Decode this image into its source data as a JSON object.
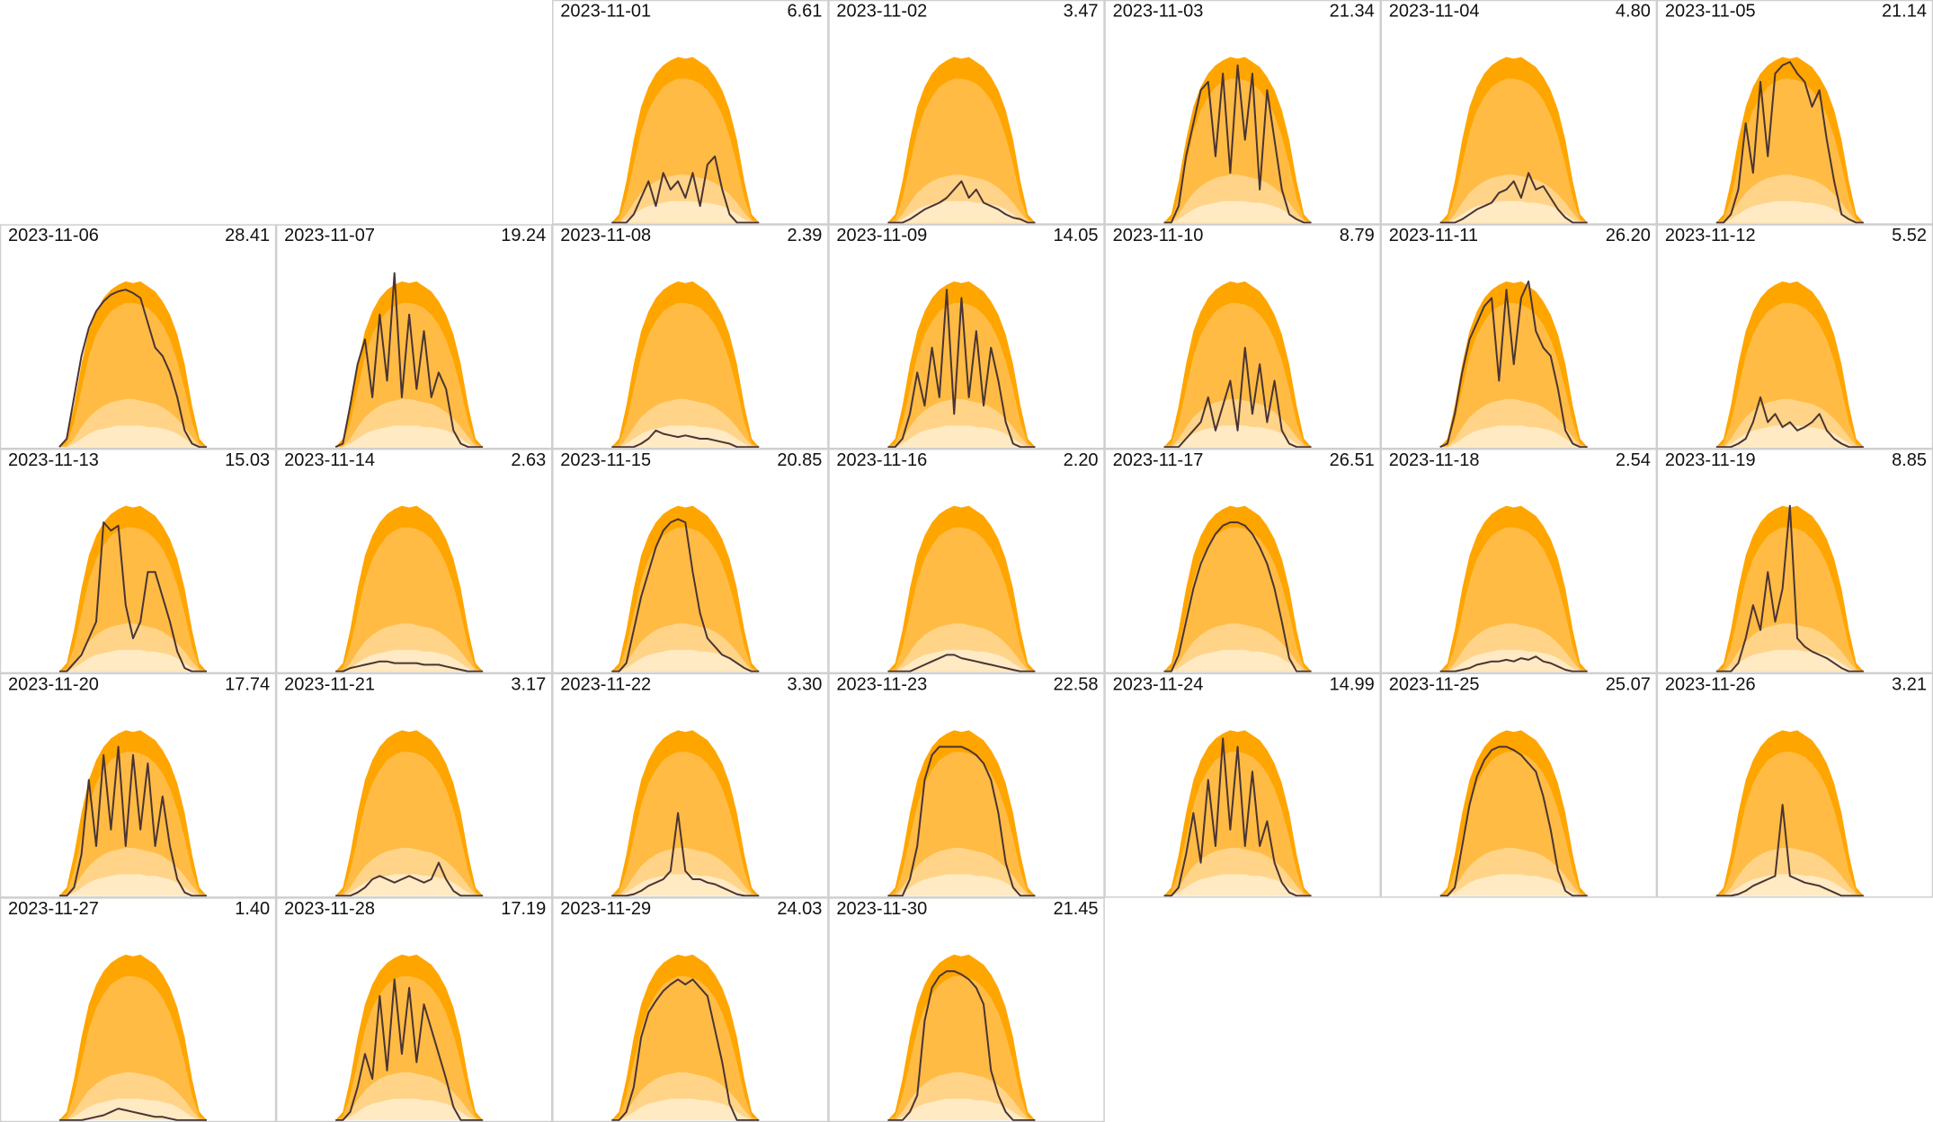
{
  "bands": [
    {
      "color": "#ffa500",
      "values": [
        0,
        0.05,
        0.25,
        0.5,
        0.7,
        0.82,
        0.9,
        0.95,
        0.98,
        1.0,
        0.99,
        1.0,
        0.97,
        0.94,
        0.88,
        0.8,
        0.68,
        0.5,
        0.25,
        0.05,
        0
      ]
    },
    {
      "color": "#ffbb44",
      "values": [
        0,
        0.02,
        0.15,
        0.35,
        0.55,
        0.68,
        0.76,
        0.82,
        0.85,
        0.87,
        0.87,
        0.86,
        0.84,
        0.8,
        0.74,
        0.65,
        0.52,
        0.35,
        0.15,
        0.02,
        0
      ]
    },
    {
      "color": "#ffd488",
      "values": [
        0,
        0,
        0.05,
        0.12,
        0.18,
        0.22,
        0.25,
        0.27,
        0.28,
        0.29,
        0.29,
        0.28,
        0.27,
        0.26,
        0.24,
        0.21,
        0.17,
        0.12,
        0.06,
        0.01,
        0
      ]
    },
    {
      "color": "#ffeac4",
      "values": [
        0,
        0,
        0.02,
        0.05,
        0.08,
        0.1,
        0.11,
        0.12,
        0.13,
        0.13,
        0.13,
        0.13,
        0.12,
        0.12,
        0.11,
        0.1,
        0.08,
        0.05,
        0.02,
        0,
        0
      ]
    }
  ],
  "line_color": "#4a3434",
  "ylim": [
    0,
    1.1
  ],
  "chart_data": [
    {
      "type": "area-line",
      "title": "2023-11-01",
      "total": "6.61",
      "values": [
        0,
        0,
        0,
        0.05,
        0.15,
        0.25,
        0.1,
        0.3,
        0.2,
        0.25,
        0.15,
        0.3,
        0.1,
        0.35,
        0.4,
        0.2,
        0.05,
        0,
        0,
        0,
        0
      ]
    },
    {
      "type": "area-line",
      "title": "2023-11-02",
      "total": "3.47",
      "values": [
        0,
        0,
        0,
        0.02,
        0.05,
        0.08,
        0.1,
        0.12,
        0.15,
        0.2,
        0.25,
        0.15,
        0.2,
        0.12,
        0.1,
        0.08,
        0.05,
        0.03,
        0.02,
        0,
        0
      ]
    },
    {
      "type": "area-line",
      "title": "2023-11-03",
      "total": "21.34",
      "values": [
        0,
        0,
        0.1,
        0.4,
        0.6,
        0.8,
        0.85,
        0.4,
        0.9,
        0.3,
        0.95,
        0.5,
        0.9,
        0.2,
        0.8,
        0.5,
        0.2,
        0.05,
        0.02,
        0,
        0
      ]
    },
    {
      "type": "area-line",
      "title": "2023-11-04",
      "total": "4.80",
      "values": [
        0,
        0,
        0,
        0.02,
        0.05,
        0.08,
        0.1,
        0.12,
        0.18,
        0.2,
        0.25,
        0.15,
        0.3,
        0.2,
        0.22,
        0.15,
        0.08,
        0.03,
        0,
        0,
        0
      ]
    },
    {
      "type": "area-line",
      "title": "2023-11-05",
      "total": "21.14",
      "values": [
        0,
        0,
        0.05,
        0.2,
        0.6,
        0.3,
        0.85,
        0.4,
        0.9,
        0.95,
        0.97,
        0.9,
        0.85,
        0.7,
        0.8,
        0.5,
        0.25,
        0.05,
        0.02,
        0,
        0
      ]
    },
    {
      "type": "area-line",
      "title": "2023-11-06",
      "total": "28.41",
      "values": [
        0,
        0.05,
        0.3,
        0.55,
        0.72,
        0.82,
        0.88,
        0.92,
        0.94,
        0.95,
        0.93,
        0.9,
        0.75,
        0.6,
        0.55,
        0.45,
        0.3,
        0.1,
        0.02,
        0,
        0
      ]
    },
    {
      "type": "area-line",
      "title": "2023-11-07",
      "total": "19.24",
      "values": [
        0,
        0.02,
        0.25,
        0.5,
        0.65,
        0.3,
        0.8,
        0.4,
        1.05,
        0.3,
        0.8,
        0.35,
        0.7,
        0.3,
        0.45,
        0.35,
        0.1,
        0.02,
        0,
        0,
        0
      ]
    },
    {
      "type": "area-line",
      "title": "2023-11-08",
      "total": "2.39",
      "values": [
        0,
        0,
        0,
        0,
        0.02,
        0.05,
        0.1,
        0.08,
        0.07,
        0.06,
        0.07,
        0.06,
        0.05,
        0.05,
        0.04,
        0.03,
        0.02,
        0,
        0,
        0,
        0
      ]
    },
    {
      "type": "area-line",
      "title": "2023-11-09",
      "total": "14.05",
      "values": [
        0,
        0,
        0.05,
        0.2,
        0.45,
        0.25,
        0.6,
        0.3,
        0.95,
        0.2,
        0.9,
        0.3,
        0.7,
        0.25,
        0.6,
        0.4,
        0.15,
        0.02,
        0,
        0,
        0
      ]
    },
    {
      "type": "area-line",
      "title": "2023-11-10",
      "total": "8.79",
      "values": [
        0,
        0,
        0,
        0.05,
        0.1,
        0.15,
        0.3,
        0.1,
        0.25,
        0.4,
        0.1,
        0.6,
        0.2,
        0.5,
        0.15,
        0.4,
        0.1,
        0.02,
        0,
        0,
        0
      ]
    },
    {
      "type": "area-line",
      "title": "2023-11-11",
      "total": "26.20",
      "values": [
        0,
        0.02,
        0.2,
        0.45,
        0.65,
        0.75,
        0.85,
        0.9,
        0.4,
        0.95,
        0.5,
        0.9,
        1.0,
        0.7,
        0.6,
        0.55,
        0.35,
        0.1,
        0.02,
        0,
        0
      ]
    },
    {
      "type": "area-line",
      "title": "2023-11-12",
      "total": "5.52",
      "values": [
        0,
        0,
        0,
        0.02,
        0.05,
        0.15,
        0.3,
        0.15,
        0.2,
        0.12,
        0.15,
        0.1,
        0.12,
        0.15,
        0.2,
        0.1,
        0.05,
        0.02,
        0,
        0,
        0
      ]
    },
    {
      "type": "area-line",
      "title": "2023-11-13",
      "total": "15.03",
      "values": [
        0,
        0,
        0.05,
        0.1,
        0.2,
        0.3,
        0.9,
        0.85,
        0.88,
        0.4,
        0.2,
        0.3,
        0.6,
        0.6,
        0.45,
        0.3,
        0.12,
        0.02,
        0,
        0,
        0
      ]
    },
    {
      "type": "area-line",
      "title": "2023-11-14",
      "total": "2.63",
      "values": [
        0,
        0,
        0.02,
        0.03,
        0.04,
        0.05,
        0.06,
        0.06,
        0.05,
        0.05,
        0.05,
        0.05,
        0.04,
        0.04,
        0.04,
        0.03,
        0.02,
        0.01,
        0,
        0,
        0
      ]
    },
    {
      "type": "area-line",
      "title": "2023-11-15",
      "total": "20.85",
      "values": [
        0,
        0,
        0.05,
        0.25,
        0.45,
        0.6,
        0.75,
        0.85,
        0.9,
        0.92,
        0.9,
        0.6,
        0.35,
        0.2,
        0.15,
        0.1,
        0.08,
        0.05,
        0.02,
        0,
        0
      ]
    },
    {
      "type": "area-line",
      "title": "2023-11-16",
      "total": "2.20",
      "values": [
        0,
        0,
        0,
        0,
        0.02,
        0.04,
        0.06,
        0.08,
        0.1,
        0.1,
        0.08,
        0.07,
        0.06,
        0.05,
        0.04,
        0.03,
        0.02,
        0.01,
        0,
        0,
        0
      ]
    },
    {
      "type": "area-line",
      "title": "2023-11-17",
      "total": "26.51",
      "values": [
        0,
        0,
        0.1,
        0.3,
        0.5,
        0.65,
        0.75,
        0.83,
        0.88,
        0.9,
        0.9,
        0.88,
        0.83,
        0.75,
        0.65,
        0.5,
        0.3,
        0.08,
        0,
        0,
        0
      ]
    },
    {
      "type": "area-line",
      "title": "2023-11-18",
      "total": "2.54",
      "values": [
        0,
        0,
        0,
        0.01,
        0.02,
        0.04,
        0.05,
        0.06,
        0.06,
        0.07,
        0.06,
        0.08,
        0.07,
        0.09,
        0.06,
        0.05,
        0.03,
        0.01,
        0,
        0,
        0
      ]
    },
    {
      "type": "area-line",
      "title": "2023-11-19",
      "total": "8.85",
      "values": [
        0,
        0,
        0,
        0.05,
        0.2,
        0.4,
        0.25,
        0.6,
        0.3,
        0.5,
        1.0,
        0.2,
        0.15,
        0.12,
        0.1,
        0.08,
        0.05,
        0.02,
        0,
        0,
        0
      ]
    },
    {
      "type": "area-line",
      "title": "2023-11-20",
      "total": "17.74",
      "values": [
        0,
        0,
        0.05,
        0.25,
        0.7,
        0.3,
        0.85,
        0.4,
        0.9,
        0.3,
        0.85,
        0.4,
        0.8,
        0.3,
        0.6,
        0.3,
        0.1,
        0.02,
        0,
        0,
        0
      ]
    },
    {
      "type": "area-line",
      "title": "2023-11-21",
      "total": "3.17",
      "values": [
        0,
        0,
        0,
        0.02,
        0.05,
        0.1,
        0.12,
        0.1,
        0.08,
        0.1,
        0.12,
        0.1,
        0.08,
        0.1,
        0.2,
        0.1,
        0.03,
        0,
        0,
        0,
        0
      ]
    },
    {
      "type": "area-line",
      "title": "2023-11-22",
      "total": "3.30",
      "values": [
        0,
        0,
        0,
        0.01,
        0.03,
        0.06,
        0.08,
        0.1,
        0.15,
        0.5,
        0.15,
        0.1,
        0.1,
        0.08,
        0.07,
        0.05,
        0.03,
        0.01,
        0,
        0,
        0
      ]
    },
    {
      "type": "area-line",
      "title": "2023-11-23",
      "total": "22.58",
      "values": [
        0,
        0,
        0,
        0.1,
        0.3,
        0.7,
        0.85,
        0.9,
        0.9,
        0.9,
        0.9,
        0.88,
        0.85,
        0.8,
        0.7,
        0.5,
        0.2,
        0.05,
        0,
        0,
        0
      ]
    },
    {
      "type": "area-line",
      "title": "2023-11-24",
      "total": "14.99",
      "values": [
        0,
        0,
        0.05,
        0.25,
        0.5,
        0.2,
        0.7,
        0.3,
        0.95,
        0.4,
        0.9,
        0.3,
        0.75,
        0.3,
        0.45,
        0.2,
        0.08,
        0.02,
        0,
        0,
        0
      ]
    },
    {
      "type": "area-line",
      "title": "2023-11-25",
      "total": "25.07",
      "values": [
        0,
        0,
        0.05,
        0.3,
        0.55,
        0.72,
        0.82,
        0.88,
        0.9,
        0.9,
        0.88,
        0.85,
        0.8,
        0.75,
        0.6,
        0.4,
        0.15,
        0.03,
        0,
        0,
        0
      ]
    },
    {
      "type": "area-line",
      "title": "2023-11-26",
      "total": "3.21",
      "values": [
        0,
        0,
        0,
        0.01,
        0.03,
        0.06,
        0.08,
        0.1,
        0.12,
        0.55,
        0.12,
        0.1,
        0.08,
        0.07,
        0.06,
        0.04,
        0.02,
        0,
        0,
        0,
        0
      ]
    },
    {
      "type": "area-line",
      "title": "2023-11-27",
      "total": "1.40",
      "values": [
        0,
        0,
        0,
        0,
        0.01,
        0.02,
        0.03,
        0.05,
        0.07,
        0.06,
        0.05,
        0.04,
        0.03,
        0.02,
        0.02,
        0.01,
        0,
        0,
        0,
        0,
        0
      ]
    },
    {
      "type": "area-line",
      "title": "2023-11-28",
      "total": "17.19",
      "values": [
        0,
        0,
        0.05,
        0.2,
        0.4,
        0.25,
        0.75,
        0.3,
        0.85,
        0.4,
        0.8,
        0.35,
        0.7,
        0.55,
        0.4,
        0.25,
        0.08,
        0,
        0,
        0,
        0
      ]
    },
    {
      "type": "area-line",
      "title": "2023-11-29",
      "total": "24.03",
      "values": [
        0,
        0,
        0.05,
        0.2,
        0.5,
        0.65,
        0.72,
        0.78,
        0.82,
        0.85,
        0.82,
        0.85,
        0.8,
        0.75,
        0.55,
        0.35,
        0.1,
        0,
        0,
        0,
        0
      ]
    },
    {
      "type": "area-line",
      "title": "2023-11-30",
      "total": "21.45",
      "values": [
        0,
        0,
        0,
        0.05,
        0.15,
        0.6,
        0.8,
        0.87,
        0.9,
        0.9,
        0.88,
        0.85,
        0.8,
        0.7,
        0.3,
        0.15,
        0.05,
        0,
        0,
        0,
        0
      ]
    }
  ]
}
